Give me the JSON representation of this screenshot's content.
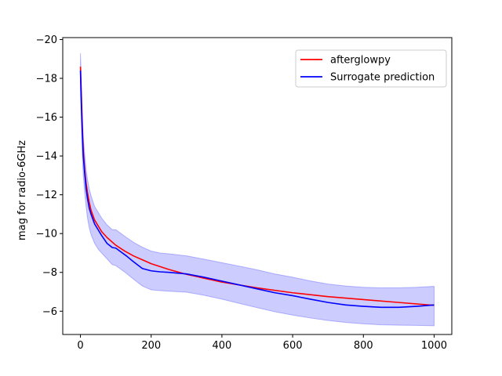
{
  "chart_data": {
    "type": "line",
    "title": "",
    "xlabel": "",
    "ylabel": "mag for radio-6GHz",
    "xlim": [
      -50,
      1050
    ],
    "ylim": [
      -4.8,
      -20.1
    ],
    "y_inverted": true,
    "grid": false,
    "legend_position": "top-right",
    "x_ticks": [
      0,
      200,
      400,
      600,
      800,
      1000
    ],
    "x_tick_labels": [
      "0",
      "200",
      "400",
      "600",
      "800",
      "1000"
    ],
    "y_ticks": [
      -6,
      -8,
      -10,
      -12,
      -14,
      -16,
      -18,
      -20
    ],
    "y_tick_labels": [
      "−6",
      "−8",
      "−10",
      "−12",
      "−14",
      "−16",
      "−18",
      "−20"
    ],
    "series": [
      {
        "name": "afterglowpy",
        "color": "#ff0000",
        "x": [
          0,
          2,
          5,
          8,
          12,
          16,
          20,
          25,
          30,
          40,
          50,
          60,
          75,
          100,
          125,
          150,
          175,
          200,
          250,
          300,
          350,
          400,
          500,
          600,
          700,
          800,
          900,
          1000
        ],
        "y": [
          -18.6,
          -17.4,
          -15.7,
          -14.3,
          -13.3,
          -12.6,
          -12.1,
          -11.6,
          -11.2,
          -10.7,
          -10.4,
          -10.1,
          -9.8,
          -9.4,
          -9.1,
          -8.85,
          -8.65,
          -8.45,
          -8.15,
          -7.9,
          -7.7,
          -7.5,
          -7.2,
          -6.95,
          -6.75,
          -6.6,
          -6.45,
          -6.3
        ]
      },
      {
        "name": "Surrogate prediction",
        "color": "#0000ff",
        "x": [
          0,
          2,
          5,
          8,
          12,
          16,
          20,
          25,
          30,
          40,
          50,
          60,
          75,
          90,
          100,
          115,
          130,
          150,
          175,
          200,
          225,
          250,
          300,
          350,
          400,
          450,
          500,
          550,
          600,
          650,
          700,
          750,
          800,
          850,
          900,
          950,
          1000
        ],
        "y": [
          -18.4,
          -17.0,
          -15.3,
          -14.0,
          -13.1,
          -12.3,
          -11.8,
          -11.3,
          -11.0,
          -10.5,
          -10.2,
          -9.9,
          -9.5,
          -9.28,
          -9.25,
          -9.05,
          -8.85,
          -8.55,
          -8.2,
          -8.08,
          -8.03,
          -8.0,
          -7.92,
          -7.75,
          -7.55,
          -7.35,
          -7.15,
          -6.95,
          -6.8,
          -6.62,
          -6.45,
          -6.32,
          -6.25,
          -6.2,
          -6.2,
          -6.25,
          -6.32
        ],
        "band_upper": [
          -19.3,
          -18.3,
          -16.5,
          -15.0,
          -14.1,
          -13.3,
          -12.8,
          -12.3,
          -11.95,
          -11.4,
          -11.1,
          -10.8,
          -10.45,
          -10.2,
          -10.2,
          -10.0,
          -9.8,
          -9.55,
          -9.3,
          -9.1,
          -9.0,
          -8.96,
          -8.85,
          -8.68,
          -8.5,
          -8.32,
          -8.13,
          -7.92,
          -7.75,
          -7.56,
          -7.4,
          -7.3,
          -7.23,
          -7.2,
          -7.2,
          -7.23,
          -7.28
        ],
        "band_lower": [
          -17.5,
          -16.1,
          -14.2,
          -13.0,
          -12.1,
          -11.4,
          -10.8,
          -10.3,
          -9.95,
          -9.5,
          -9.2,
          -9.0,
          -8.7,
          -8.4,
          -8.35,
          -8.15,
          -7.95,
          -7.65,
          -7.3,
          -7.1,
          -7.06,
          -7.03,
          -6.98,
          -6.82,
          -6.62,
          -6.4,
          -6.18,
          -5.97,
          -5.8,
          -5.65,
          -5.52,
          -5.42,
          -5.35,
          -5.3,
          -5.28,
          -5.27,
          -5.25
        ]
      }
    ]
  }
}
